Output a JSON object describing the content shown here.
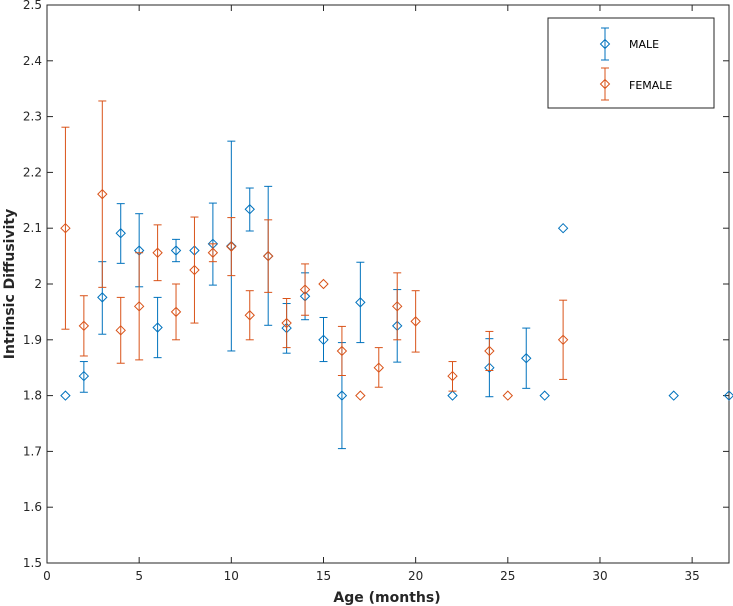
{
  "chart_data": {
    "type": "scatter",
    "title": "",
    "xlabel": "Age (months)",
    "ylabel": "Intrinsic Diffusivity",
    "xlim": [
      0,
      37
    ],
    "ylim": [
      1.5,
      2.5
    ],
    "xticks": [
      0,
      5,
      10,
      15,
      20,
      25,
      30,
      35
    ],
    "yticks": [
      1.5,
      1.6,
      1.7,
      1.8,
      1.9,
      2.0,
      2.1,
      2.2,
      2.3,
      2.4,
      2.5
    ],
    "xtick_labels": [
      "0",
      "5",
      "10",
      "15",
      "20",
      "25",
      "30",
      "35"
    ],
    "ytick_labels": [
      "1.5",
      "1.6",
      "1.7",
      "1.8",
      "1.9",
      "2",
      "2.1",
      "2.2",
      "2.3",
      "2.4",
      "2.5"
    ],
    "grid": false,
    "legend_position": "top-right",
    "marker": "diamond",
    "series": [
      {
        "name": "MALE",
        "color": "#0072BD",
        "points": [
          {
            "x": 1,
            "y": 1.8,
            "lo": 1.8,
            "hi": 1.8
          },
          {
            "x": 2,
            "y": 1.835,
            "lo": 1.806,
            "hi": 1.861
          },
          {
            "x": 3,
            "y": 1.976,
            "lo": 1.91,
            "hi": 2.04
          },
          {
            "x": 4,
            "y": 2.091,
            "lo": 2.037,
            "hi": 2.144
          },
          {
            "x": 5,
            "y": 2.06,
            "lo": 1.995,
            "hi": 2.126
          },
          {
            "x": 6,
            "y": 1.922,
            "lo": 1.868,
            "hi": 1.976
          },
          {
            "x": 7,
            "y": 2.06,
            "lo": 2.04,
            "hi": 2.08
          },
          {
            "x": 8,
            "y": 2.06,
            "lo": 2.06,
            "hi": 2.06
          },
          {
            "x": 9,
            "y": 2.072,
            "lo": 1.998,
            "hi": 2.145
          },
          {
            "x": 10,
            "y": 2.068,
            "lo": 1.88,
            "hi": 2.256
          },
          {
            "x": 11,
            "y": 2.134,
            "lo": 2.095,
            "hi": 2.172
          },
          {
            "x": 12,
            "y": 2.05,
            "lo": 1.926,
            "hi": 2.175
          },
          {
            "x": 13,
            "y": 1.921,
            "lo": 1.876,
            "hi": 1.965
          },
          {
            "x": 14,
            "y": 1.978,
            "lo": 1.936,
            "hi": 2.02
          },
          {
            "x": 15,
            "y": 1.9,
            "lo": 1.861,
            "hi": 1.94
          },
          {
            "x": 16,
            "y": 1.8,
            "lo": 1.705,
            "hi": 1.895
          },
          {
            "x": 17,
            "y": 1.967,
            "lo": 1.895,
            "hi": 2.039
          },
          {
            "x": 19,
            "y": 1.925,
            "lo": 1.86,
            "hi": 1.99
          },
          {
            "x": 22,
            "y": 1.8,
            "lo": 1.8,
            "hi": 1.8
          },
          {
            "x": 24,
            "y": 1.85,
            "lo": 1.798,
            "hi": 1.902
          },
          {
            "x": 26,
            "y": 1.867,
            "lo": 1.813,
            "hi": 1.921
          },
          {
            "x": 27,
            "y": 1.8,
            "lo": 1.8,
            "hi": 1.8
          },
          {
            "x": 28,
            "y": 2.1,
            "lo": 2.1,
            "hi": 2.1
          },
          {
            "x": 34,
            "y": 1.8,
            "lo": 1.8,
            "hi": 1.8
          },
          {
            "x": 37,
            "y": 1.8,
            "lo": 1.8,
            "hi": 1.8
          }
        ]
      },
      {
        "name": "FEMALE",
        "color": "#D95319",
        "points": [
          {
            "x": 1,
            "y": 2.1,
            "lo": 1.919,
            "hi": 2.281
          },
          {
            "x": 2,
            "y": 1.925,
            "lo": 1.871,
            "hi": 1.979
          },
          {
            "x": 3,
            "y": 2.161,
            "lo": 1.994,
            "hi": 2.328
          },
          {
            "x": 4,
            "y": 1.917,
            "lo": 1.858,
            "hi": 1.976
          },
          {
            "x": 5,
            "y": 1.96,
            "lo": 1.864,
            "hi": 2.056
          },
          {
            "x": 6,
            "y": 2.056,
            "lo": 2.006,
            "hi": 2.106
          },
          {
            "x": 7,
            "y": 1.95,
            "lo": 1.9,
            "hi": 2.0
          },
          {
            "x": 8,
            "y": 2.025,
            "lo": 1.93,
            "hi": 2.12
          },
          {
            "x": 9,
            "y": 2.056,
            "lo": 2.04,
            "hi": 2.072
          },
          {
            "x": 10,
            "y": 2.067,
            "lo": 2.015,
            "hi": 2.119
          },
          {
            "x": 11,
            "y": 1.944,
            "lo": 1.9,
            "hi": 1.988
          },
          {
            "x": 12,
            "y": 2.05,
            "lo": 1.985,
            "hi": 2.115
          },
          {
            "x": 13,
            "y": 1.93,
            "lo": 1.886,
            "hi": 1.974
          },
          {
            "x": 14,
            "y": 1.99,
            "lo": 1.944,
            "hi": 2.036
          },
          {
            "x": 15,
            "y": 2.0,
            "lo": 2.0,
            "hi": 2.0
          },
          {
            "x": 16,
            "y": 1.88,
            "lo": 1.836,
            "hi": 1.924
          },
          {
            "x": 17,
            "y": 1.8,
            "lo": 1.8,
            "hi": 1.8
          },
          {
            "x": 18,
            "y": 1.85,
            "lo": 1.815,
            "hi": 1.886
          },
          {
            "x": 19,
            "y": 1.96,
            "lo": 1.9,
            "hi": 2.02
          },
          {
            "x": 20,
            "y": 1.933,
            "lo": 1.878,
            "hi": 1.988
          },
          {
            "x": 22,
            "y": 1.835,
            "lo": 1.808,
            "hi": 1.861
          },
          {
            "x": 24,
            "y": 1.88,
            "lo": 1.845,
            "hi": 1.915
          },
          {
            "x": 25,
            "y": 1.8,
            "lo": 1.8,
            "hi": 1.8
          },
          {
            "x": 28,
            "y": 1.9,
            "lo": 1.829,
            "hi": 1.971
          }
        ]
      }
    ]
  }
}
